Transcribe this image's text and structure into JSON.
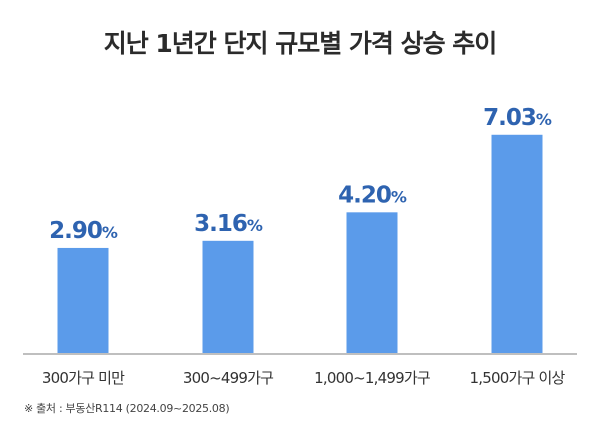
{
  "chart_data": {
    "type": "bar",
    "title": "지난 1년간 단지 규모별 가격 상승 추이",
    "categories": [
      "300가구 미만",
      "300~499가구",
      "1,000~1,499가구",
      "1,500가구 이상"
    ],
    "values": [
      2.9,
      3.16,
      4.2,
      7.03
    ],
    "value_labels": [
      "2.90",
      "3.16",
      "4.20",
      "7.03"
    ],
    "unit": "%",
    "xlabel": "",
    "ylabel": "",
    "grid": false,
    "colors": {
      "bar": "#5b9bea",
      "label": "#2e63b0",
      "axis": "#aaaaaa"
    }
  },
  "source": "※ 출처 : 부동산R114 (2024.09~2025.08)"
}
